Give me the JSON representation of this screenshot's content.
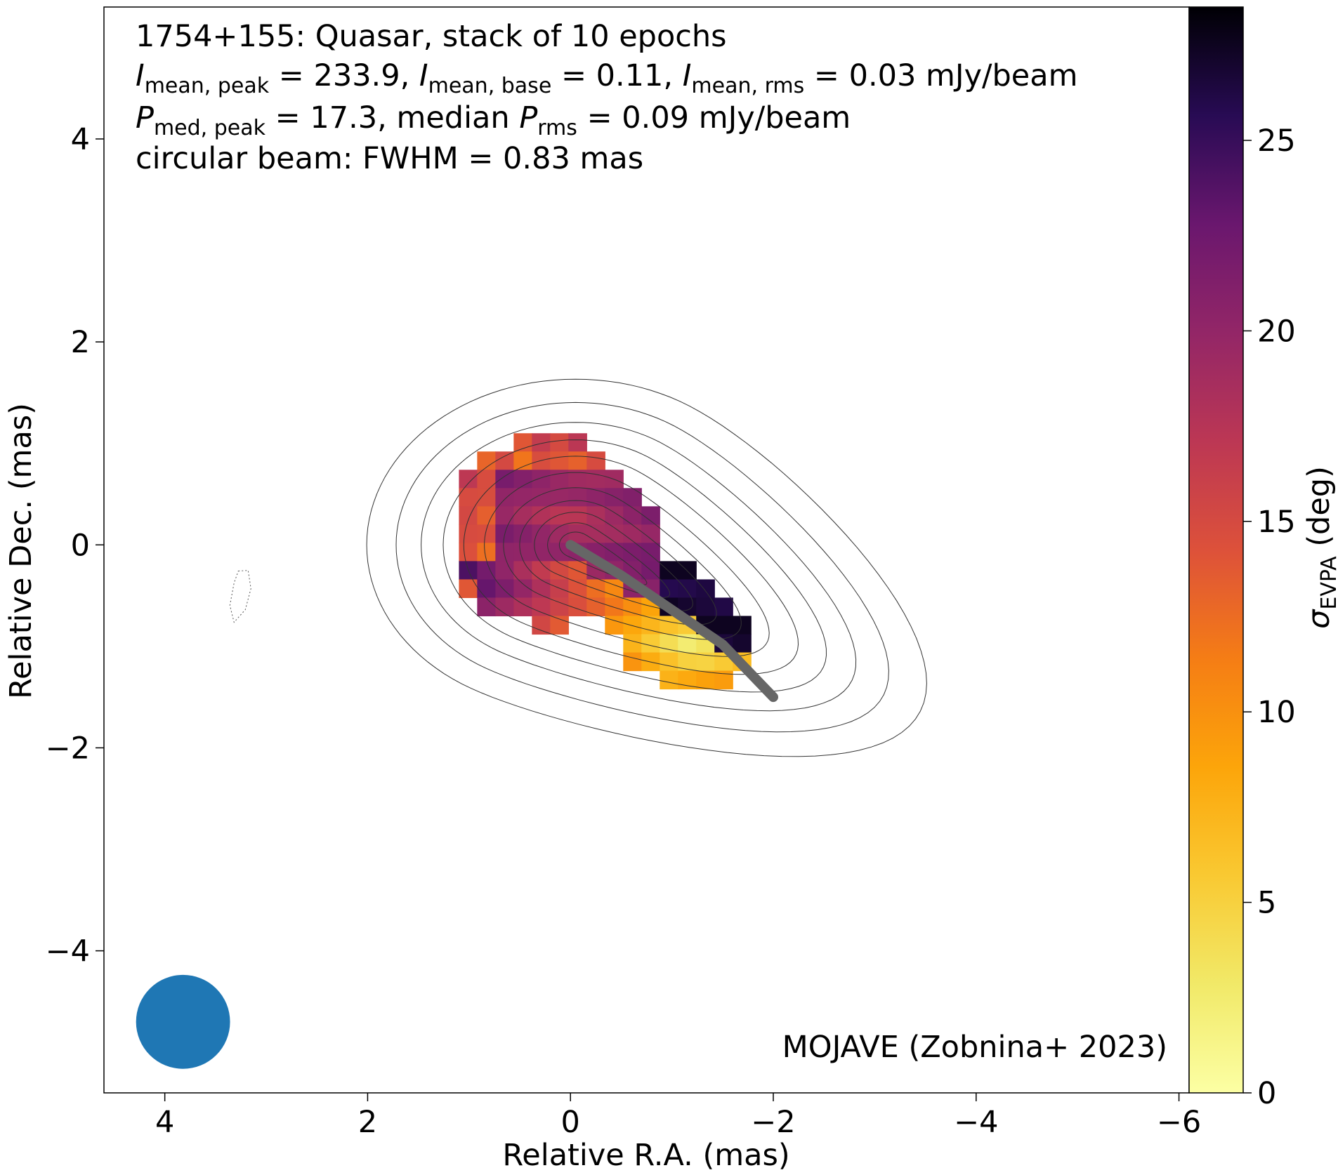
{
  "chart_data": {
    "type": "heatmap",
    "header": {
      "line1": "1754+155: Quasar, stack of 10 epochs",
      "line2": {
        "sym1": "I",
        "sub1": "mean, peak",
        "val1": " = 233.9, ",
        "sym2": "I",
        "sub2": "mean, base",
        "val2": " = 0.11, ",
        "sym3": "I",
        "sub3": "mean, rms",
        "val3": " = 0.03 mJy/beam"
      },
      "line3": {
        "sym1": "P",
        "sub1": "med, peak",
        "val1": " = 17.3, median ",
        "sym2": "P",
        "sub2": "rms",
        "val2": " = 0.09 mJy/beam"
      },
      "line4": "circular beam: FWHM = 0.83 mas"
    },
    "credit": "MOJAVE (Zobnina+ 2023)",
    "xlabel": "Relative R.A. (mas)",
    "ylabel": "Relative Dec. (mas)",
    "xlim": [
      4.6,
      -6.1
    ],
    "ylim": [
      -5.4,
      5.3
    ],
    "xticks": [
      4,
      2,
      0,
      -2,
      -4,
      -6
    ],
    "yticks": [
      -4,
      -2,
      0,
      2,
      4
    ],
    "colorbar": {
      "label_sym": "σ",
      "label_sub": "EVPA",
      "label_unit": " (deg)",
      "range": [
        0,
        28.5
      ],
      "ticks": [
        0,
        5,
        10,
        15,
        20,
        25
      ],
      "colormap": "inferno_r"
    },
    "beam": {
      "x": 3.82,
      "y": -4.7,
      "fwhm": 0.83,
      "color": "#1f77b4"
    },
    "ridge_line": {
      "color": "#666666",
      "points": [
        [
          0,
          0
        ],
        [
          -0.5,
          -0.3
        ],
        [
          -1.0,
          -0.64
        ],
        [
          -1.5,
          -0.98
        ],
        [
          -2.0,
          -1.5
        ]
      ]
    },
    "contours": {
      "color": "#333333",
      "levels_scale": [
        1.42,
        1.22,
        1.05,
        0.9,
        0.76,
        0.62,
        0.49,
        0.38,
        0.28,
        0.19,
        0.11
      ]
    },
    "negative_contour": {
      "center": [
        3.22,
        -0.5
      ],
      "style": "dotted"
    },
    "evpa_sigma_map": {
      "pixel_size": 0.18,
      "description_units": "deg"
    }
  }
}
